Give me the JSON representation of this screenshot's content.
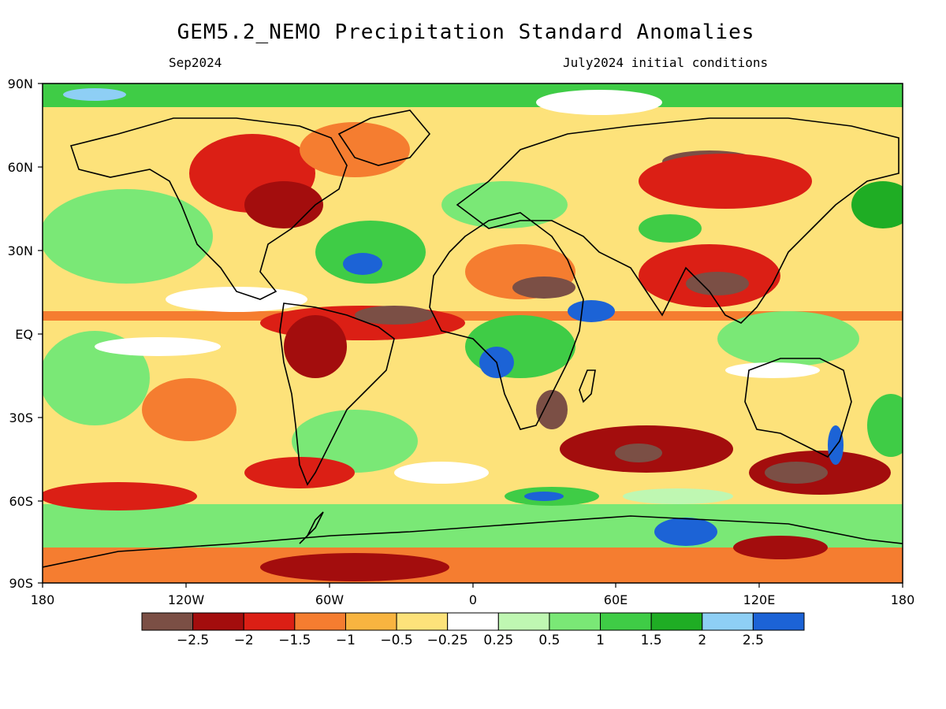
{
  "title": "GEM5.2_NEMO Precipitation Standard Anomalies",
  "valid_month": "Sep2024",
  "initial_conditions": "July2024 initial conditions",
  "latitude_labels": [
    "90N",
    "60N",
    "30N",
    "EQ",
    "30S",
    "60S",
    "90S"
  ],
  "longitude_labels": [
    "180",
    "120W",
    "60W",
    "0",
    "60E",
    "120E",
    "180"
  ],
  "colorbar": {
    "colors": [
      "#7b4f45",
      "#a30d0d",
      "#db1f15",
      "#f57d30",
      "#f8b440",
      "#fde27a",
      "#ffffff",
      "#bff7b2",
      "#7ae876",
      "#3fcc46",
      "#1fad24",
      "#8ecff5",
      "#1c63d6"
    ],
    "labels": [
      "−2.5",
      "−2",
      "−1.5",
      "−1",
      "−0.5",
      "−0.25",
      "0.25",
      "0.5",
      "1",
      "1.5",
      "2",
      "2.5"
    ]
  },
  "map_colors": {
    "frame": "#000000",
    "coast": "#000000"
  }
}
